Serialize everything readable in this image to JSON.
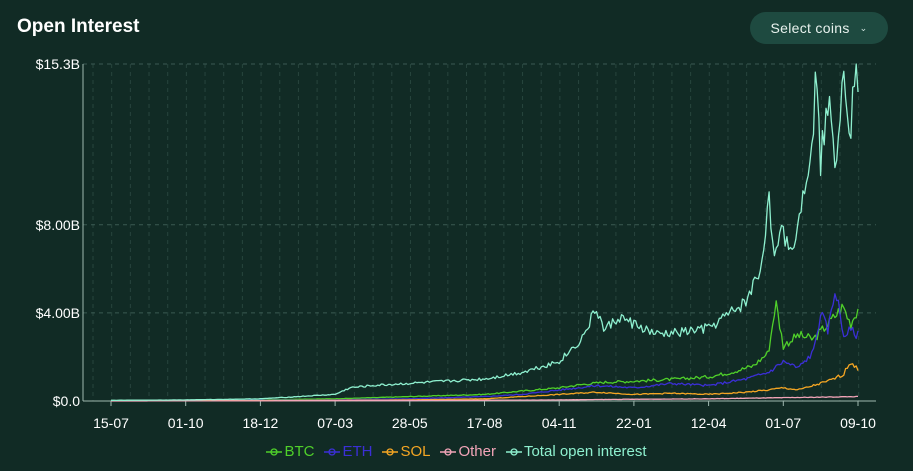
{
  "header": {
    "title": "Open Interest",
    "select_label": "Select coins",
    "select_icon": "chevron-down-icon"
  },
  "colors": {
    "background": "#112b25",
    "grid": "#3a5a52",
    "btc": "#4fd02a",
    "eth": "#3b2fd6",
    "sol": "#f5a623",
    "other": "#f2a4b8",
    "total": "#8ef0cf"
  },
  "chart_data": {
    "type": "line",
    "x_ticks": [
      "15-07",
      "01-10",
      "18-12",
      "07-03",
      "28-05",
      "17-08",
      "04-11",
      "22-01",
      "12-04",
      "01-07",
      "09-10"
    ],
    "y_ticks": [
      {
        "value": 0,
        "label": "$0.0"
      },
      {
        "value": 4,
        "label": "$4.00B"
      },
      {
        "value": 8,
        "label": "$8.00B"
      },
      {
        "value": 15.3,
        "label": "$15.3B"
      }
    ],
    "ylim": [
      0,
      15.3
    ],
    "y_unit": "billion USD",
    "grid": true,
    "legend_position": "bottom",
    "x_index_range": [
      0,
      10
    ],
    "series": [
      {
        "key": "btc",
        "name": "BTC",
        "points": [
          [
            0,
            0.02
          ],
          [
            1,
            0.03
          ],
          [
            2,
            0.05
          ],
          [
            2.5,
            0.08
          ],
          [
            3,
            0.1
          ],
          [
            3.5,
            0.15
          ],
          [
            4,
            0.2
          ],
          [
            4.5,
            0.25
          ],
          [
            5,
            0.3
          ],
          [
            5.5,
            0.45
          ],
          [
            6,
            0.6
          ],
          [
            6.3,
            0.75
          ],
          [
            6.6,
            0.85
          ],
          [
            7,
            0.9
          ],
          [
            7.3,
            0.95
          ],
          [
            7.6,
            1.0
          ],
          [
            8,
            1.1
          ],
          [
            8.3,
            1.3
          ],
          [
            8.6,
            1.6
          ],
          [
            8.8,
            2.2
          ],
          [
            8.9,
            4.5
          ],
          [
            9.0,
            2.5
          ],
          [
            9.2,
            3.0
          ],
          [
            9.4,
            2.8
          ],
          [
            9.6,
            3.5
          ],
          [
            9.8,
            4.3
          ],
          [
            9.9,
            3.5
          ],
          [
            10,
            4.2
          ]
        ]
      },
      {
        "key": "eth",
        "name": "ETH",
        "points": [
          [
            0,
            0.01
          ],
          [
            1,
            0.02
          ],
          [
            2,
            0.03
          ],
          [
            3,
            0.05
          ],
          [
            3.5,
            0.08
          ],
          [
            4,
            0.1
          ],
          [
            4.5,
            0.15
          ],
          [
            5,
            0.2
          ],
          [
            5.5,
            0.3
          ],
          [
            6,
            0.5
          ],
          [
            6.5,
            0.7
          ],
          [
            7,
            0.6
          ],
          [
            7.5,
            0.8
          ],
          [
            8,
            0.7
          ],
          [
            8.5,
            1.0
          ],
          [
            8.8,
            1.3
          ],
          [
            9.0,
            1.8
          ],
          [
            9.2,
            1.5
          ],
          [
            9.4,
            2.2
          ],
          [
            9.5,
            4.0
          ],
          [
            9.6,
            3.2
          ],
          [
            9.7,
            5.2
          ],
          [
            9.8,
            3.0
          ],
          [
            9.9,
            3.2
          ],
          [
            10,
            3.0
          ]
        ]
      },
      {
        "key": "sol",
        "name": "SOL",
        "points": [
          [
            0,
            0.005
          ],
          [
            1,
            0.01
          ],
          [
            2,
            0.02
          ],
          [
            3,
            0.03
          ],
          [
            4,
            0.05
          ],
          [
            5,
            0.1
          ],
          [
            5.5,
            0.2
          ],
          [
            6,
            0.3
          ],
          [
            6.5,
            0.4
          ],
          [
            7,
            0.3
          ],
          [
            7.5,
            0.35
          ],
          [
            8,
            0.3
          ],
          [
            8.5,
            0.4
          ],
          [
            8.8,
            0.5
          ],
          [
            9.0,
            0.6
          ],
          [
            9.2,
            0.5
          ],
          [
            9.4,
            0.7
          ],
          [
            9.6,
            0.9
          ],
          [
            9.8,
            1.2
          ],
          [
            9.9,
            1.8
          ],
          [
            10,
            1.4
          ]
        ]
      },
      {
        "key": "other",
        "name": "Other",
        "points": [
          [
            0,
            0.0
          ],
          [
            2,
            0.01
          ],
          [
            4,
            0.02
          ],
          [
            6,
            0.05
          ],
          [
            7,
            0.08
          ],
          [
            8,
            0.1
          ],
          [
            9,
            0.15
          ],
          [
            10,
            0.2
          ]
        ]
      },
      {
        "key": "total",
        "name": "Total open interest",
        "points": [
          [
            0,
            0.03
          ],
          [
            1,
            0.05
          ],
          [
            2,
            0.1
          ],
          [
            2.5,
            0.2
          ],
          [
            3,
            0.3
          ],
          [
            3.2,
            0.6
          ],
          [
            3.5,
            0.7
          ],
          [
            4,
            0.8
          ],
          [
            4.5,
            0.9
          ],
          [
            5,
            1.0
          ],
          [
            5.5,
            1.3
          ],
          [
            6,
            1.8
          ],
          [
            6.3,
            2.8
          ],
          [
            6.5,
            4.2
          ],
          [
            6.6,
            3.2
          ],
          [
            6.8,
            3.8
          ],
          [
            7,
            3.5
          ],
          [
            7.3,
            3.0
          ],
          [
            7.6,
            3.1
          ],
          [
            8,
            3.3
          ],
          [
            8.3,
            4.0
          ],
          [
            8.5,
            4.5
          ],
          [
            8.7,
            6.0
          ],
          [
            8.8,
            9.2
          ],
          [
            8.9,
            6.5
          ],
          [
            9.0,
            7.8
          ],
          [
            9.1,
            6.8
          ],
          [
            9.2,
            8.0
          ],
          [
            9.3,
            10.2
          ],
          [
            9.4,
            12.5
          ],
          [
            9.45,
            15.3
          ],
          [
            9.5,
            11.0
          ],
          [
            9.6,
            13.5
          ],
          [
            9.7,
            11.0
          ],
          [
            9.8,
            15.2
          ],
          [
            9.9,
            12.5
          ],
          [
            9.95,
            15.1
          ],
          [
            10,
            14.4
          ]
        ]
      }
    ]
  }
}
